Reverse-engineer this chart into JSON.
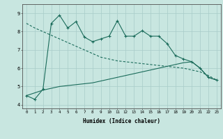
{
  "xlabel": "Humidex (Indice chaleur)",
  "bg_color": "#c8e6e0",
  "grid_color": "#a8ccc8",
  "line_color": "#1a6b5a",
  "x_values": [
    0,
    1,
    2,
    3,
    4,
    5,
    6,
    7,
    8,
    9,
    10,
    11,
    12,
    13,
    14,
    15,
    16,
    17,
    18,
    19,
    20,
    21,
    22,
    23
  ],
  "line_jagged": [
    4.5,
    4.3,
    4.85,
    8.45,
    8.9,
    8.2,
    8.55,
    7.7,
    7.45,
    7.6,
    7.75,
    8.6,
    7.75,
    7.75,
    8.05,
    7.75,
    7.75,
    7.35,
    6.7,
    6.5,
    6.35,
    6.0,
    5.5,
    5.35
  ],
  "line_upper_trend": [
    8.45,
    8.2,
    8.0,
    7.8,
    7.6,
    7.4,
    7.2,
    7.0,
    6.8,
    6.6,
    6.5,
    6.4,
    6.35,
    6.3,
    6.25,
    6.2,
    6.15,
    6.1,
    6.05,
    6.0,
    5.9,
    5.8,
    5.6,
    5.35
  ],
  "line_lower_trend": [
    4.5,
    4.65,
    4.8,
    4.9,
    5.0,
    5.05,
    5.1,
    5.15,
    5.2,
    5.3,
    5.4,
    5.5,
    5.6,
    5.7,
    5.8,
    5.9,
    6.0,
    6.1,
    6.2,
    6.3,
    6.35,
    6.0,
    5.5,
    5.35
  ],
  "ylim": [
    3.8,
    9.5
  ],
  "yticks": [
    4,
    5,
    6,
    7,
    8,
    9
  ],
  "xlim": [
    -0.5,
    23.5
  ]
}
